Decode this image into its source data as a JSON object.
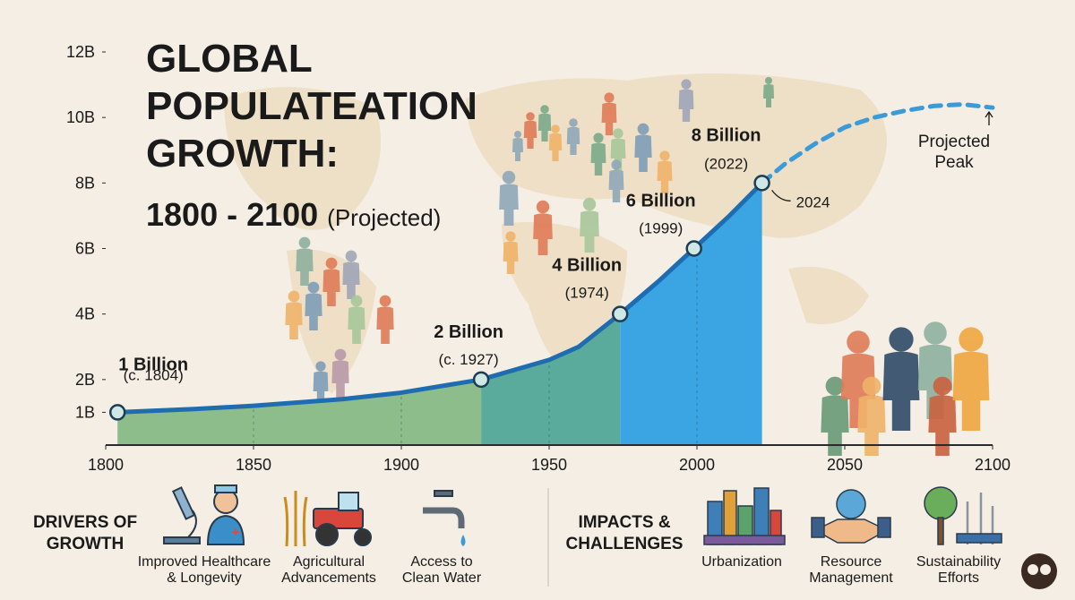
{
  "chart_data": {
    "type": "line",
    "title_lines": [
      "GLOBAL",
      "POPULATEATION",
      "GROWTH:"
    ],
    "title_range": "1800 - 2100",
    "title_note": "(Projected)",
    "xlim": [
      1800,
      2100
    ],
    "xticks": [
      1800,
      1850,
      1900,
      1950,
      2000,
      2050,
      2100
    ],
    "ylim": [
      0,
      12
    ],
    "yticks": [
      {
        "value": 1,
        "label": "1B"
      },
      {
        "value": 2,
        "label": "2B"
      },
      {
        "value": 4,
        "label": "4B"
      },
      {
        "value": 6,
        "label": "6B"
      },
      {
        "value": 8,
        "label": "8B"
      },
      {
        "value": 10,
        "label": "10B"
      },
      {
        "value": 12,
        "label": "12B"
      }
    ],
    "series": [
      {
        "color": "#1f6db0",
        "style": "solid",
        "x": [
          1804,
          1830,
          1850,
          1880,
          1900,
          1927,
          1950,
          1960,
          1974,
          1987,
          1999,
          2011,
          2022
        ],
        "values": [
          1,
          1.1,
          1.2,
          1.4,
          1.6,
          2,
          2.6,
          3,
          4,
          5,
          6,
          7,
          8
        ]
      },
      {
        "color": "#3b9ad8",
        "style": "dashed",
        "x": [
          2022,
          2030,
          2040,
          2050,
          2060,
          2070,
          2080,
          2090,
          2100
        ],
        "values": [
          8,
          8.6,
          9.2,
          9.7,
          10,
          10.2,
          10.35,
          10.4,
          10.3
        ]
      }
    ],
    "eras": [
      {
        "from": 1804,
        "to": 1927,
        "color": "#8dbd8b"
      },
      {
        "from": 1927,
        "to": 1974,
        "color": "#5aab9c"
      },
      {
        "from": 1974,
        "to": 2022,
        "color": "#3aa5e2"
      }
    ],
    "milestones": [
      {
        "label": "1 Billion",
        "note": "(c. 1804)",
        "year": 1804,
        "value": 1
      },
      {
        "label": "2 Billion",
        "note": "(c. 1927)",
        "year": 1927,
        "value": 2
      },
      {
        "label": "4 Billion",
        "note": "(1974)",
        "year": 1974,
        "value": 4
      },
      {
        "label": "6 Billion",
        "note": "(1999)",
        "year": 1999,
        "value": 6
      },
      {
        "label": "8 Billion",
        "note": "(2022)",
        "year": 2022,
        "value": 8
      }
    ],
    "annotations": {
      "current": "2024",
      "peak": [
        "Projected",
        "Peak"
      ]
    },
    "drivers": {
      "heading": [
        "DRIVERS OF",
        "GROWTH"
      ],
      "items": [
        [
          "Improved Healthcare",
          "& Longevity"
        ],
        [
          "Agricultural",
          "Advancements"
        ],
        [
          "Access to",
          "Clean Water"
        ]
      ]
    },
    "impacts": {
      "heading": [
        "IMPACTS &",
        "CHALLENGES"
      ],
      "items": [
        [
          "Urbanization"
        ],
        [
          "Resource",
          "Management"
        ],
        [
          "Sustainability",
          "Efforts"
        ]
      ]
    }
  }
}
